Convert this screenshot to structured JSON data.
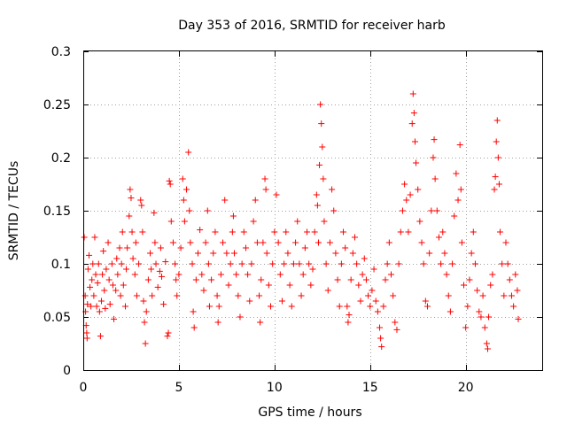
{
  "chart_data": {
    "type": "scatter",
    "title": "Day 353 of 2016, SRMTID for receiver harb",
    "xlabel": "GPS time / hours",
    "ylabel": "SRMTID / TECUs",
    "xlim": [
      0,
      24
    ],
    "ylim": [
      0,
      0.3
    ],
    "xticks": [
      0,
      5,
      10,
      15,
      20
    ],
    "xtick_labels": [
      "0",
      "5",
      "10",
      "15",
      "20"
    ],
    "yticks": [
      0,
      0.05,
      0.1,
      0.15,
      0.2,
      0.25,
      0.3
    ],
    "ytick_labels": [
      "0",
      "0.05",
      "0.1",
      "0.15",
      "0.2",
      "0.25",
      "0.3"
    ],
    "grid": true,
    "marker": "+",
    "series": [
      {
        "name": "harb",
        "color": "#ff0000",
        "points": [
          [
            0.05,
            0.125
          ],
          [
            0.1,
            0.07
          ],
          [
            0.12,
            0.055
          ],
          [
            0.15,
            0.042
          ],
          [
            0.18,
            0.035
          ],
          [
            0.2,
            0.03
          ],
          [
            0.22,
            0.062
          ],
          [
            0.25,
            0.095
          ],
          [
            0.3,
            0.108
          ],
          [
            0.35,
            0.078
          ],
          [
            0.4,
            0.06
          ],
          [
            0.45,
            0.085
          ],
          [
            0.5,
            0.1
          ],
          [
            0.55,
            0.07
          ],
          [
            0.6,
            0.125
          ],
          [
            0.65,
            0.09
          ],
          [
            0.7,
            0.06
          ],
          [
            0.75,
            0.082
          ],
          [
            0.8,
            0.1
          ],
          [
            0.85,
            0.055
          ],
          [
            0.9,
            0.032
          ],
          [
            0.95,
            0.065
          ],
          [
            1.0,
            0.09
          ],
          [
            1.05,
            0.112
          ],
          [
            1.1,
            0.075
          ],
          [
            1.15,
            0.058
          ],
          [
            1.2,
            0.095
          ],
          [
            1.3,
            0.12
          ],
          [
            1.35,
            0.085
          ],
          [
            1.4,
            0.062
          ],
          [
            1.5,
            0.1
          ],
          [
            1.55,
            0.08
          ],
          [
            1.6,
            0.048
          ],
          [
            1.7,
            0.075
          ],
          [
            1.75,
            0.105
          ],
          [
            1.8,
            0.09
          ],
          [
            1.9,
            0.115
          ],
          [
            1.95,
            0.07
          ],
          [
            2.0,
            0.1
          ],
          [
            2.05,
            0.13
          ],
          [
            2.1,
            0.08
          ],
          [
            2.2,
            0.06
          ],
          [
            2.25,
            0.095
          ],
          [
            2.3,
            0.115
          ],
          [
            2.4,
            0.145
          ],
          [
            2.45,
            0.17
          ],
          [
            2.5,
            0.162
          ],
          [
            2.55,
            0.13
          ],
          [
            2.6,
            0.105
          ],
          [
            2.7,
            0.09
          ],
          [
            2.75,
            0.12
          ],
          [
            2.8,
            0.07
          ],
          [
            2.9,
            0.1
          ],
          [
            3.0,
            0.16
          ],
          [
            3.05,
            0.155
          ],
          [
            3.1,
            0.13
          ],
          [
            3.15,
            0.065
          ],
          [
            3.2,
            0.045
          ],
          [
            3.25,
            0.025
          ],
          [
            3.3,
            0.055
          ],
          [
            3.4,
            0.085
          ],
          [
            3.5,
            0.11
          ],
          [
            3.55,
            0.095
          ],
          [
            3.6,
            0.07
          ],
          [
            3.7,
            0.148
          ],
          [
            3.75,
            0.12
          ],
          [
            3.8,
            0.1
          ],
          [
            3.9,
            0.078
          ],
          [
            4.0,
            0.093
          ],
          [
            4.05,
            0.115
          ],
          [
            4.1,
            0.088
          ],
          [
            4.2,
            0.062
          ],
          [
            4.3,
            0.102
          ],
          [
            4.4,
            0.032
          ],
          [
            4.45,
            0.035
          ],
          [
            4.5,
            0.178
          ],
          [
            4.55,
            0.175
          ],
          [
            4.6,
            0.14
          ],
          [
            4.7,
            0.12
          ],
          [
            4.8,
            0.1
          ],
          [
            4.85,
            0.085
          ],
          [
            4.9,
            0.07
          ],
          [
            5.0,
            0.09
          ],
          [
            5.1,
            0.115
          ],
          [
            5.2,
            0.18
          ],
          [
            5.25,
            0.16
          ],
          [
            5.3,
            0.14
          ],
          [
            5.4,
            0.17
          ],
          [
            5.5,
            0.205
          ],
          [
            5.55,
            0.15
          ],
          [
            5.6,
            0.12
          ],
          [
            5.7,
            0.1
          ],
          [
            5.75,
            0.055
          ],
          [
            5.8,
            0.04
          ],
          [
            5.9,
            0.085
          ],
          [
            6.0,
            0.11
          ],
          [
            6.1,
            0.132
          ],
          [
            6.2,
            0.09
          ],
          [
            6.3,
            0.075
          ],
          [
            6.4,
            0.12
          ],
          [
            6.5,
            0.15
          ],
          [
            6.55,
            0.1
          ],
          [
            6.6,
            0.06
          ],
          [
            6.7,
            0.085
          ],
          [
            6.8,
            0.11
          ],
          [
            6.9,
            0.13
          ],
          [
            7.0,
            0.07
          ],
          [
            7.05,
            0.045
          ],
          [
            7.1,
            0.06
          ],
          [
            7.2,
            0.09
          ],
          [
            7.3,
            0.12
          ],
          [
            7.4,
            0.16
          ],
          [
            7.5,
            0.11
          ],
          [
            7.6,
            0.08
          ],
          [
            7.7,
            0.1
          ],
          [
            7.8,
            0.13
          ],
          [
            7.85,
            0.145
          ],
          [
            7.9,
            0.11
          ],
          [
            8.0,
            0.09
          ],
          [
            8.1,
            0.07
          ],
          [
            8.2,
            0.05
          ],
          [
            8.3,
            0.1
          ],
          [
            8.4,
            0.13
          ],
          [
            8.5,
            0.115
          ],
          [
            8.6,
            0.09
          ],
          [
            8.7,
            0.065
          ],
          [
            8.8,
            0.1
          ],
          [
            8.9,
            0.14
          ],
          [
            9.0,
            0.16
          ],
          [
            9.1,
            0.12
          ],
          [
            9.2,
            0.07
          ],
          [
            9.25,
            0.045
          ],
          [
            9.3,
            0.085
          ],
          [
            9.4,
            0.12
          ],
          [
            9.5,
            0.18
          ],
          [
            9.55,
            0.17
          ],
          [
            9.6,
            0.11
          ],
          [
            9.7,
            0.08
          ],
          [
            9.8,
            0.06
          ],
          [
            9.9,
            0.1
          ],
          [
            10.0,
            0.13
          ],
          [
            10.1,
            0.165
          ],
          [
            10.2,
            0.12
          ],
          [
            10.3,
            0.09
          ],
          [
            10.4,
            0.065
          ],
          [
            10.5,
            0.1
          ],
          [
            10.6,
            0.13
          ],
          [
            10.7,
            0.11
          ],
          [
            10.8,
            0.08
          ],
          [
            10.9,
            0.06
          ],
          [
            11.0,
            0.1
          ],
          [
            11.1,
            0.12
          ],
          [
            11.2,
            0.14
          ],
          [
            11.3,
            0.1
          ],
          [
            11.4,
            0.07
          ],
          [
            11.5,
            0.09
          ],
          [
            11.6,
            0.115
          ],
          [
            11.7,
            0.13
          ],
          [
            11.8,
            0.1
          ],
          [
            11.9,
            0.08
          ],
          [
            12.0,
            0.095
          ],
          [
            12.1,
            0.13
          ],
          [
            12.2,
            0.165
          ],
          [
            12.25,
            0.155
          ],
          [
            12.3,
            0.12
          ],
          [
            12.35,
            0.193
          ],
          [
            12.4,
            0.25
          ],
          [
            12.45,
            0.232
          ],
          [
            12.5,
            0.21
          ],
          [
            12.55,
            0.18
          ],
          [
            12.6,
            0.14
          ],
          [
            12.7,
            0.1
          ],
          [
            12.8,
            0.075
          ],
          [
            12.9,
            0.12
          ],
          [
            13.0,
            0.17
          ],
          [
            13.1,
            0.15
          ],
          [
            13.2,
            0.11
          ],
          [
            13.3,
            0.085
          ],
          [
            13.4,
            0.06
          ],
          [
            13.5,
            0.1
          ],
          [
            13.6,
            0.13
          ],
          [
            13.7,
            0.115
          ],
          [
            13.8,
            0.06
          ],
          [
            13.85,
            0.045
          ],
          [
            13.9,
            0.052
          ],
          [
            14.0,
            0.085
          ],
          [
            14.1,
            0.11
          ],
          [
            14.2,
            0.125
          ],
          [
            14.3,
            0.1
          ],
          [
            14.4,
            0.08
          ],
          [
            14.5,
            0.065
          ],
          [
            14.6,
            0.09
          ],
          [
            14.7,
            0.105
          ],
          [
            14.8,
            0.085
          ],
          [
            14.9,
            0.07
          ],
          [
            15.0,
            0.06
          ],
          [
            15.1,
            0.075
          ],
          [
            15.2,
            0.095
          ],
          [
            15.3,
            0.065
          ],
          [
            15.4,
            0.055
          ],
          [
            15.5,
            0.04
          ],
          [
            15.55,
            0.03
          ],
          [
            15.6,
            0.022
          ],
          [
            15.7,
            0.06
          ],
          [
            15.8,
            0.085
          ],
          [
            15.9,
            0.1
          ],
          [
            16.0,
            0.12
          ],
          [
            16.1,
            0.09
          ],
          [
            16.2,
            0.07
          ],
          [
            16.3,
            0.045
          ],
          [
            16.4,
            0.038
          ],
          [
            16.5,
            0.1
          ],
          [
            16.6,
            0.13
          ],
          [
            16.7,
            0.15
          ],
          [
            16.8,
            0.175
          ],
          [
            16.9,
            0.16
          ],
          [
            17.0,
            0.13
          ],
          [
            17.1,
            0.165
          ],
          [
            17.2,
            0.232
          ],
          [
            17.25,
            0.26
          ],
          [
            17.3,
            0.242
          ],
          [
            17.35,
            0.215
          ],
          [
            17.4,
            0.195
          ],
          [
            17.5,
            0.17
          ],
          [
            17.6,
            0.14
          ],
          [
            17.7,
            0.12
          ],
          [
            17.8,
            0.1
          ],
          [
            17.9,
            0.065
          ],
          [
            18.0,
            0.06
          ],
          [
            18.1,
            0.11
          ],
          [
            18.2,
            0.15
          ],
          [
            18.3,
            0.2
          ],
          [
            18.35,
            0.217
          ],
          [
            18.4,
            0.18
          ],
          [
            18.5,
            0.15
          ],
          [
            18.6,
            0.125
          ],
          [
            18.7,
            0.1
          ],
          [
            18.8,
            0.13
          ],
          [
            18.9,
            0.11
          ],
          [
            19.0,
            0.09
          ],
          [
            19.1,
            0.07
          ],
          [
            19.2,
            0.055
          ],
          [
            19.3,
            0.1
          ],
          [
            19.4,
            0.145
          ],
          [
            19.5,
            0.185
          ],
          [
            19.6,
            0.16
          ],
          [
            19.7,
            0.212
          ],
          [
            19.75,
            0.17
          ],
          [
            19.8,
            0.12
          ],
          [
            19.9,
            0.08
          ],
          [
            20.0,
            0.04
          ],
          [
            20.1,
            0.06
          ],
          [
            20.2,
            0.085
          ],
          [
            20.3,
            0.11
          ],
          [
            20.4,
            0.13
          ],
          [
            20.5,
            0.1
          ],
          [
            20.6,
            0.075
          ],
          [
            20.7,
            0.055
          ],
          [
            20.8,
            0.05
          ],
          [
            20.9,
            0.07
          ],
          [
            21.0,
            0.04
          ],
          [
            21.1,
            0.025
          ],
          [
            21.15,
            0.02
          ],
          [
            21.2,
            0.05
          ],
          [
            21.3,
            0.08
          ],
          [
            21.4,
            0.09
          ],
          [
            21.5,
            0.17
          ],
          [
            21.55,
            0.182
          ],
          [
            21.6,
            0.215
          ],
          [
            21.65,
            0.235
          ],
          [
            21.7,
            0.2
          ],
          [
            21.75,
            0.175
          ],
          [
            21.8,
            0.13
          ],
          [
            21.9,
            0.1
          ],
          [
            22.0,
            0.07
          ],
          [
            22.1,
            0.12
          ],
          [
            22.2,
            0.1
          ],
          [
            22.3,
            0.085
          ],
          [
            22.4,
            0.07
          ],
          [
            22.5,
            0.06
          ],
          [
            22.6,
            0.09
          ],
          [
            22.7,
            0.075
          ],
          [
            22.75,
            0.048
          ]
        ]
      }
    ]
  }
}
